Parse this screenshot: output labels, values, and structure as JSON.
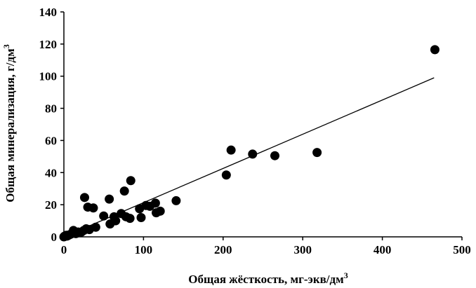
{
  "chart_data": {
    "type": "scatter",
    "xlabel": "Общая жёсткость,  мг-экв/дм",
    "xlabel_sup": "3",
    "ylabel": "Общая минерализация, г/дм",
    "ylabel_sup": "3",
    "xlim": [
      0,
      500
    ],
    "ylim": [
      0,
      140
    ],
    "xticks": [
      0,
      100,
      200,
      300,
      400,
      500
    ],
    "yticks": [
      0,
      20,
      40,
      60,
      80,
      100,
      120,
      140
    ],
    "grid": false,
    "marker_color": "#000000",
    "trendline": {
      "type": "linear",
      "x": [
        0,
        465
      ],
      "y": [
        0,
        99
      ]
    },
    "points": [
      {
        "x": 0,
        "y": 0
      },
      {
        "x": 1,
        "y": 0.5
      },
      {
        "x": 2,
        "y": 0.5
      },
      {
        "x": 3,
        "y": 1
      },
      {
        "x": 4,
        "y": 0.5
      },
      {
        "x": 5,
        "y": 1
      },
      {
        "x": 6,
        "y": 1
      },
      {
        "x": 8,
        "y": 1.5
      },
      {
        "x": 10,
        "y": 2
      },
      {
        "x": 12,
        "y": 4
      },
      {
        "x": 15,
        "y": 2
      },
      {
        "x": 18,
        "y": 3
      },
      {
        "x": 22,
        "y": 3
      },
      {
        "x": 25,
        "y": 4
      },
      {
        "x": 26,
        "y": 24.5
      },
      {
        "x": 28,
        "y": 5
      },
      {
        "x": 30,
        "y": 18.5
      },
      {
        "x": 32,
        "y": 4.5
      },
      {
        "x": 37,
        "y": 18
      },
      {
        "x": 40,
        "y": 6
      },
      {
        "x": 50,
        "y": 13
      },
      {
        "x": 57,
        "y": 23.5
      },
      {
        "x": 58,
        "y": 8
      },
      {
        "x": 63,
        "y": 12.5
      },
      {
        "x": 65,
        "y": 10
      },
      {
        "x": 72,
        "y": 14.5
      },
      {
        "x": 76,
        "y": 28.5
      },
      {
        "x": 78,
        "y": 12.5
      },
      {
        "x": 83,
        "y": 11.5
      },
      {
        "x": 84,
        "y": 35
      },
      {
        "x": 95,
        "y": 17.5
      },
      {
        "x": 97,
        "y": 12
      },
      {
        "x": 103,
        "y": 19.5
      },
      {
        "x": 108,
        "y": 19
      },
      {
        "x": 115,
        "y": 21
      },
      {
        "x": 116,
        "y": 15
      },
      {
        "x": 121,
        "y": 16
      },
      {
        "x": 141,
        "y": 22.5
      },
      {
        "x": 204,
        "y": 38.5
      },
      {
        "x": 210,
        "y": 54
      },
      {
        "x": 237,
        "y": 51.5
      },
      {
        "x": 265,
        "y": 50.5
      },
      {
        "x": 318,
        "y": 52.5
      },
      {
        "x": 466,
        "y": 116.5
      }
    ]
  }
}
